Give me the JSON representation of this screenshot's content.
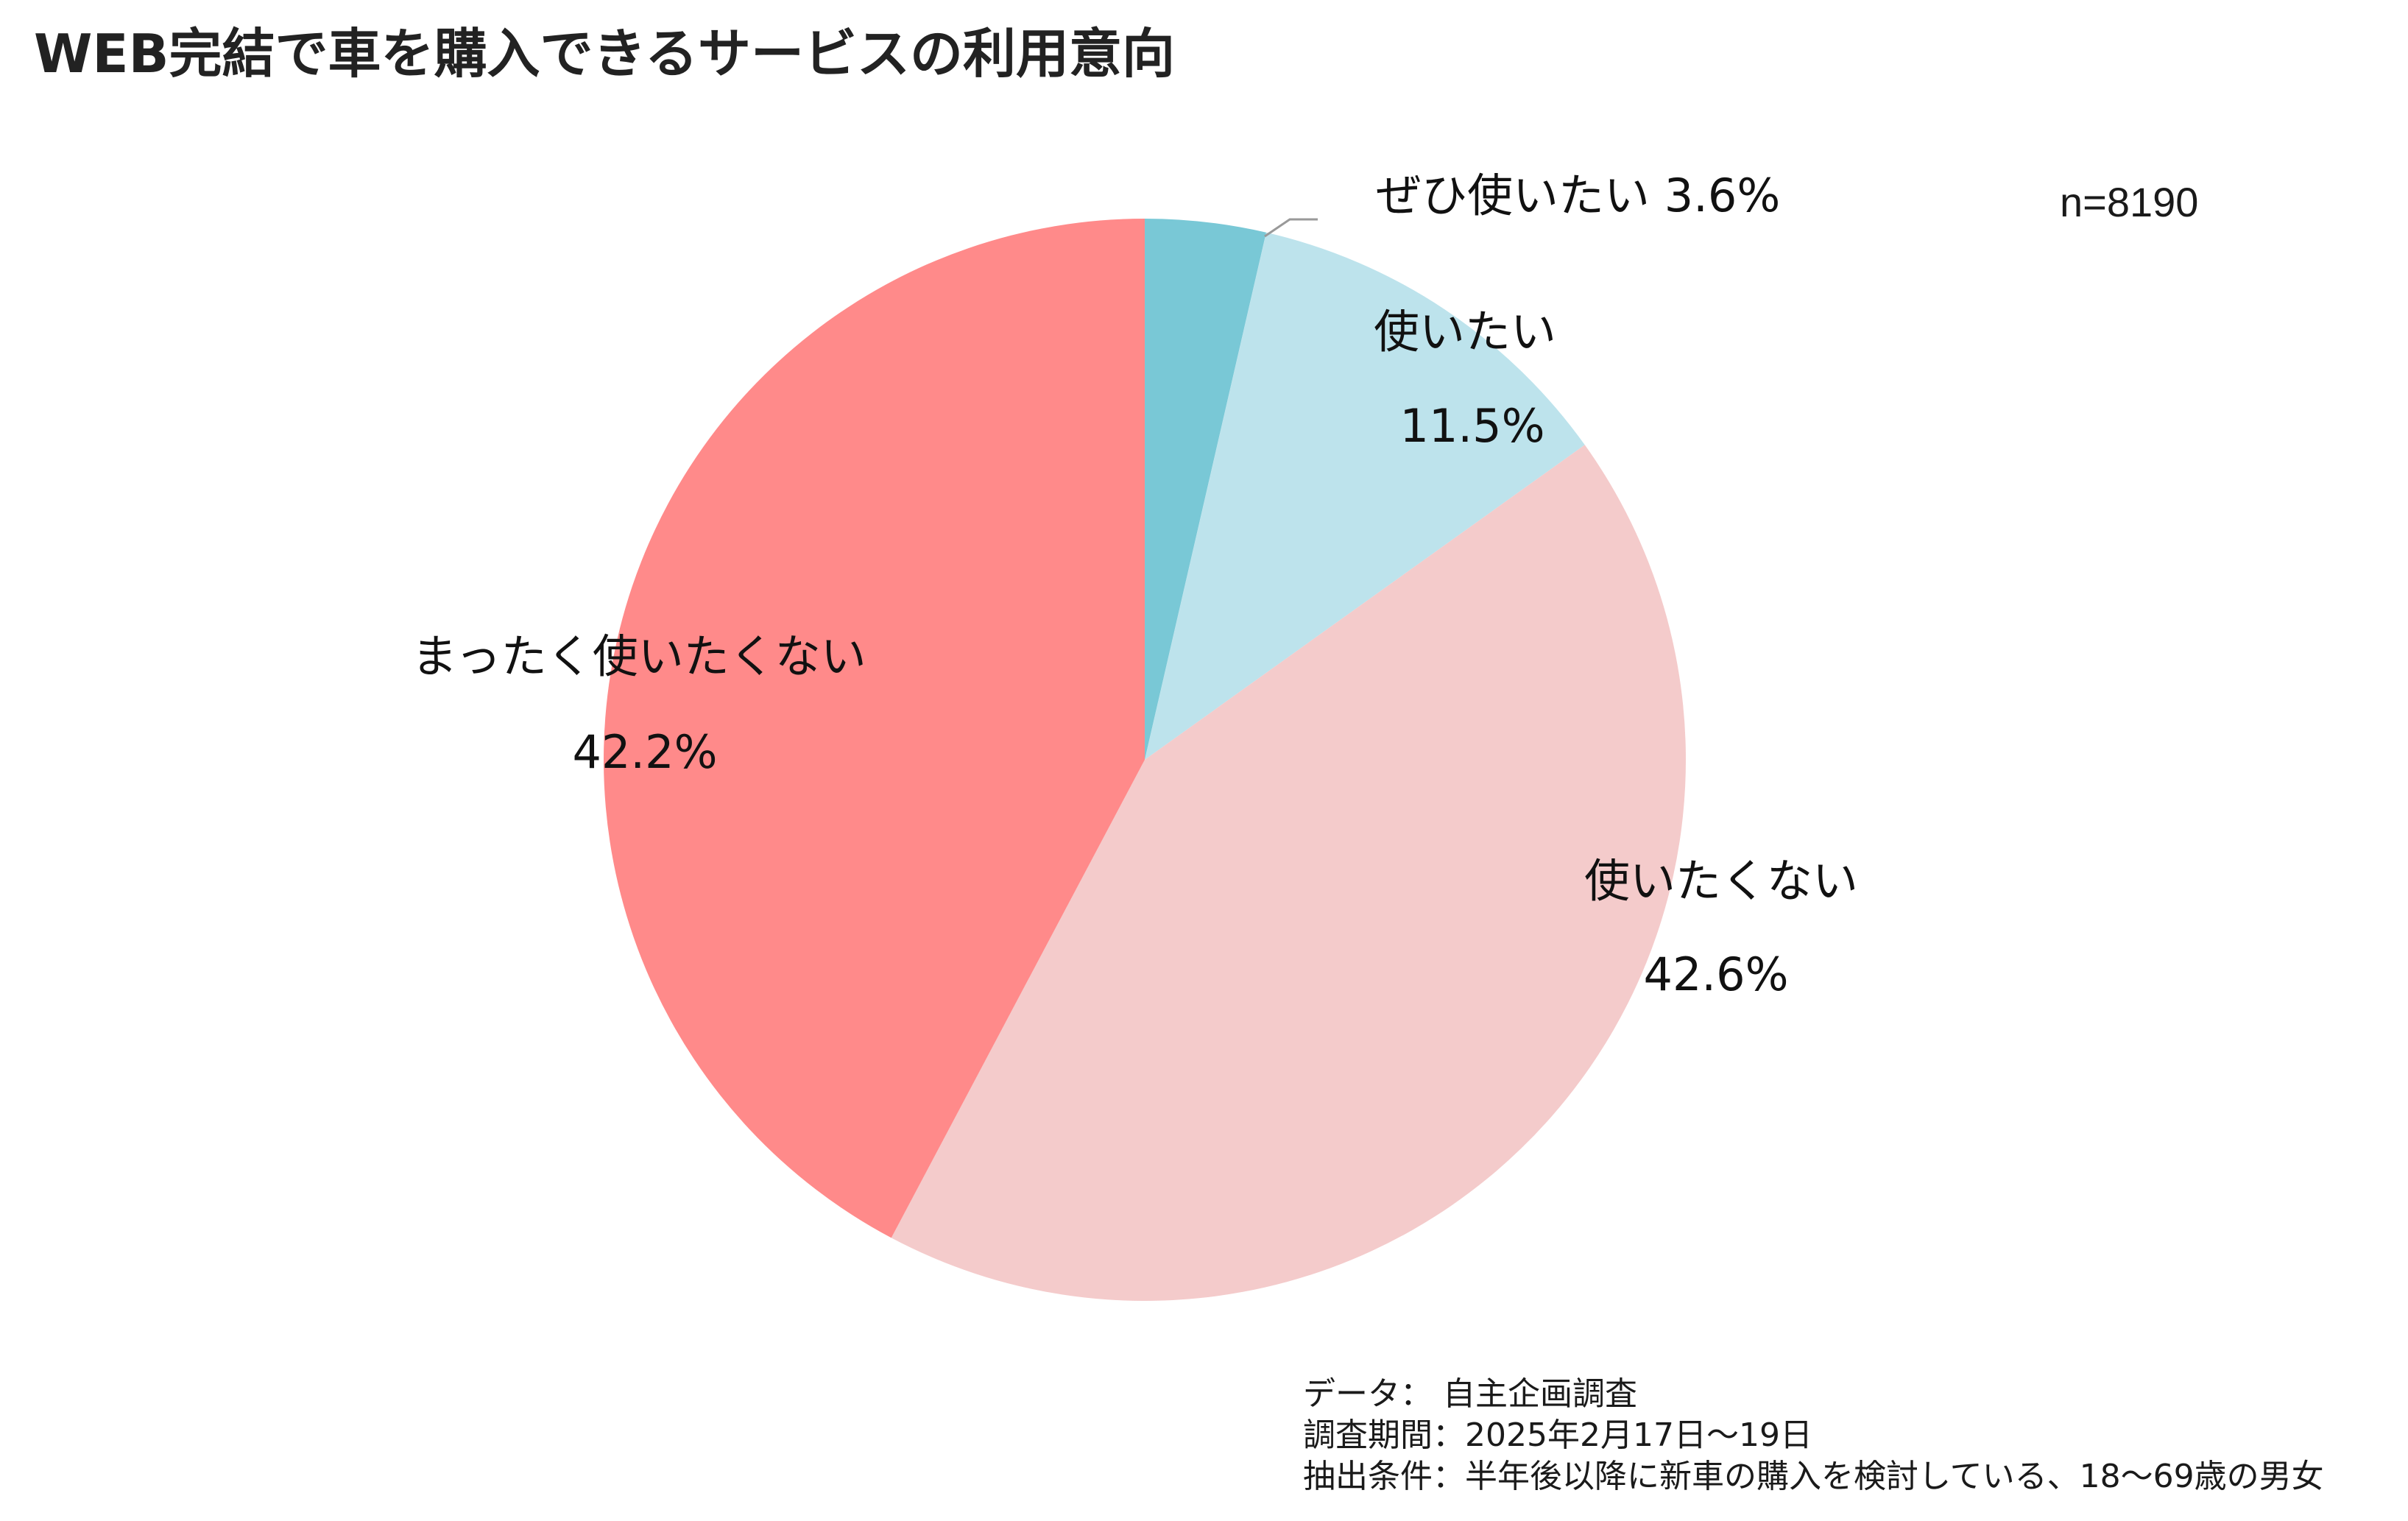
{
  "title": "WEB完結で車を購入できるサービスの利用意向",
  "sample_size": "n=8190",
  "notes": {
    "data": "データ： 自主企画調査",
    "period": "調査期間：2025年2月17日〜19日",
    "conditions": "抽出条件：半年後以降に新車の購入を検討している、18〜69歳の男女"
  },
  "colors": {
    "definitely_use": "#79c8d6",
    "want_to_use": "#bde3ec",
    "dont_want": "#f4cbcb",
    "not_at_all": "#ff8a8a",
    "leader_line": "#999999"
  },
  "chart_data": {
    "type": "pie",
    "title": "WEB完結で車を購入できるサービスの利用意向",
    "start": "12 o'clock",
    "direction": "clockwise",
    "slices": [
      {
        "label": "ぜひ使いたい",
        "value": 3.6,
        "value_label": "3.6%",
        "color": "#79c8d6"
      },
      {
        "label": "使いたい",
        "value": 11.5,
        "value_label": "11.5%",
        "color": "#bde3ec"
      },
      {
        "label": "使いたくない",
        "value": 42.6,
        "value_label": "42.6%",
        "color": "#f4cbcb"
      },
      {
        "label": "まったく使いたくない",
        "value": 42.2,
        "value_label": "42.2%",
        "color": "#ff8a8a"
      }
    ]
  }
}
